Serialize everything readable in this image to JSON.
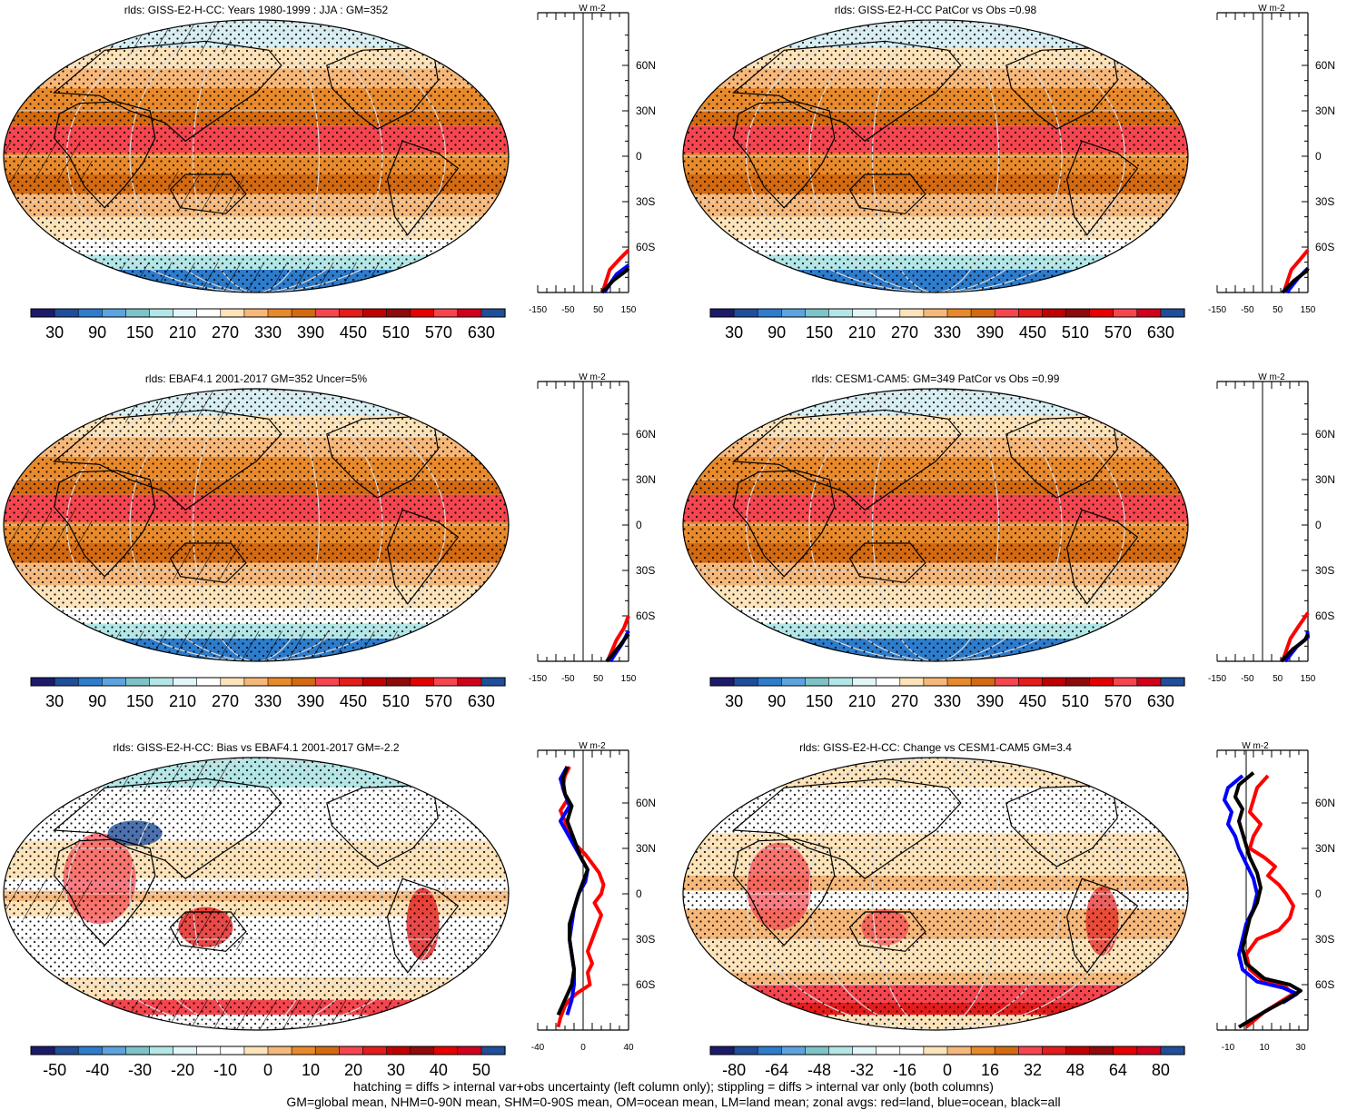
{
  "footer": {
    "line1": "hatching = diffs > internal var+obs uncertainty (left column only); stippling = diffs > internal var only (both columns)",
    "line2": "GM=global mean, NHM=0-90N mean, SHM=0-90S mean, OM=ocean mean, LM=land mean; zonal avgs: red=land, blue=ocean, black=all"
  },
  "colors": {
    "abs_scale": [
      "#1c1a6a",
      "#1f4e9a",
      "#2e7ccc",
      "#5ca4e0",
      "#7ec3c8",
      "#b3e6e6",
      "#e2f5f7",
      "#ffffff",
      "#fde3b9",
      "#f6b87a",
      "#e88a2c",
      "#d36a12",
      "#f5454f",
      "#e41c1c",
      "#c00000",
      "#8f0a0a",
      "#e60000",
      "#f5454f",
      "#d1001c",
      "#1f4e9a"
    ],
    "diff_scale": [
      "#1c1a6a",
      "#1f4e9a",
      "#2e7ccc",
      "#5ca4e0",
      "#7ec3c8",
      "#b3e6e6",
      "#e2f5f7",
      "#ffffff",
      "#ffffff",
      "#fde3b9",
      "#f6b87a",
      "#e88a2c",
      "#d36a12",
      "#f5454f",
      "#e41c1c",
      "#c00000",
      "#8f0a0a",
      "#e60000",
      "#d1001c",
      "#1f4e9a"
    ],
    "land_line": "#ff0000",
    "ocean_line": "#0000ff",
    "all_line": "#000000"
  },
  "lat_labels": [
    "60N",
    "30N",
    "0",
    "30S",
    "60S"
  ],
  "panels": [
    {
      "title": "rlds: GISS-E2-H-CC: Years 1980-1999 : JJA : GM=352",
      "kind": "abs",
      "hatched": true,
      "colorbar_labels": [
        "30",
        "90",
        "150",
        "210",
        "270",
        "330",
        "390",
        "450",
        "510",
        "570",
        "630"
      ],
      "zonal": {
        "unit": "W m-2",
        "ticks": [
          "-150",
          "-50",
          "50",
          "150"
        ]
      }
    },
    {
      "title": "rlds: GISS-E2-H-CC PatCor vs Obs =0.98",
      "kind": "abs",
      "hatched": false,
      "colorbar_labels": [
        "30",
        "90",
        "150",
        "210",
        "270",
        "330",
        "390",
        "450",
        "510",
        "570",
        "630"
      ],
      "zonal": {
        "unit": "W m-2",
        "ticks": [
          "-150",
          "-50",
          "50",
          "150"
        ]
      }
    },
    {
      "title": "rlds: EBAF4.1 2001-2017 GM=352 Uncer=5%",
      "kind": "abs",
      "hatched": true,
      "colorbar_labels": [
        "30",
        "90",
        "150",
        "210",
        "270",
        "330",
        "390",
        "450",
        "510",
        "570",
        "630"
      ],
      "zonal": {
        "unit": "W m-2",
        "ticks": [
          "-150",
          "-50",
          "50",
          "150"
        ]
      }
    },
    {
      "title": "rlds: CESM1-CAM5: GM=349 PatCor vs Obs =0.99",
      "kind": "abs",
      "hatched": false,
      "colorbar_labels": [
        "30",
        "90",
        "150",
        "210",
        "270",
        "330",
        "390",
        "450",
        "510",
        "570",
        "630"
      ],
      "zonal": {
        "unit": "W m-2",
        "ticks": [
          "-150",
          "-50",
          "50",
          "150"
        ]
      }
    },
    {
      "title": "rlds: GISS-E2-H-CC: Bias vs EBAF4.1 2001-2017 GM=-2.2",
      "kind": "diff",
      "hatched": true,
      "colorbar_labels": [
        "-50",
        "-40",
        "-30",
        "-20",
        "-10",
        "0",
        "10",
        "20",
        "30",
        "40",
        "50"
      ],
      "zonal": {
        "unit": "W m-2",
        "ticks": [
          "-40",
          "0",
          "40"
        ]
      }
    },
    {
      "title": "rlds: GISS-E2-H-CC: Change vs CESM1-CAM5 GM=3.4",
      "kind": "change",
      "hatched": false,
      "colorbar_labels": [
        "-80",
        "-64",
        "-48",
        "-32",
        "-16",
        "0",
        "16",
        "32",
        "48",
        "64",
        "80"
      ],
      "zonal": {
        "unit": "W m-2",
        "ticks": [
          "-10",
          "10",
          "30"
        ]
      }
    }
  ],
  "chart_data": [
    {
      "type": "line",
      "title": "rlds: GISS-E2-H-CC: Years 1980-1999 : JJA : GM=352",
      "xlabel": "W m-2",
      "ylabel": "",
      "xlim": [
        -150,
        150
      ],
      "ylim": [
        -90,
        90
      ],
      "y_ticks": [
        "60N",
        "30N",
        "0",
        "30S",
        "60S"
      ],
      "series": [
        {
          "name": "red=land",
          "x": [
            64,
            88,
            120,
            150
          ],
          "y": [
            -90,
            -75,
            -68,
            -62
          ]
        },
        {
          "name": "blue=ocean",
          "x": [
            70,
            110,
            150
          ],
          "y": [
            -90,
            -78,
            -72
          ]
        },
        {
          "name": "black=all",
          "x": [
            62,
            100,
            140,
            150
          ],
          "y": [
            -90,
            -82,
            -76,
            -74
          ]
        }
      ]
    },
    {
      "type": "line",
      "title": "rlds: GISS-E2-H-CC PatCor vs Obs =0.98",
      "xlabel": "W m-2",
      "ylabel": "",
      "xlim": [
        -150,
        150
      ],
      "ylim": [
        -90,
        90
      ],
      "y_ticks": [
        "60N",
        "30N",
        "0",
        "30S",
        "60S"
      ],
      "series": [
        {
          "name": "red=land",
          "x": [
            70,
            95,
            125,
            150
          ],
          "y": [
            -90,
            -75,
            -68,
            -62
          ]
        },
        {
          "name": "blue=ocean",
          "x": [
            80,
            120,
            150
          ],
          "y": [
            -90,
            -80,
            -74
          ]
        },
        {
          "name": "black=all",
          "x": [
            66,
            105,
            145,
            150
          ],
          "y": [
            -90,
            -82,
            -76,
            -74
          ]
        }
      ]
    },
    {
      "type": "line",
      "title": "rlds: EBAF4.1 2001-2017 GM=352 Uncer=5%",
      "xlabel": "W m-2",
      "ylabel": "",
      "xlim": [
        -150,
        150
      ],
      "ylim": [
        -90,
        90
      ],
      "y_ticks": [
        "60N",
        "30N",
        "0",
        "30S",
        "60S"
      ],
      "series": [
        {
          "name": "red=land",
          "x": [
            80,
            110,
            135,
            150
          ],
          "y": [
            -90,
            -76,
            -68,
            -60
          ]
        },
        {
          "name": "blue=ocean",
          "x": [
            90,
            130,
            150
          ],
          "y": [
            -90,
            -78,
            -70
          ]
        },
        {
          "name": "black=all",
          "x": [
            78,
            120,
            150
          ],
          "y": [
            -90,
            -80,
            -72
          ]
        }
      ]
    },
    {
      "type": "line",
      "title": "rlds: CESM1-CAM5: GM=349 PatCor vs Obs =0.99",
      "xlabel": "W m-2",
      "ylabel": "",
      "xlim": [
        -150,
        150
      ],
      "ylim": [
        -90,
        90
      ],
      "y_ticks": [
        "60N",
        "30N",
        "0",
        "30S",
        "60S"
      ],
      "series": [
        {
          "name": "red=land",
          "x": [
            66,
            92,
            122,
            150
          ],
          "y": [
            -90,
            -75,
            -66,
            -58
          ]
        },
        {
          "name": "blue=ocean",
          "x": [
            75,
            115,
            150,
            148
          ],
          "y": [
            -90,
            -80,
            -74,
            -70
          ]
        },
        {
          "name": "black=all",
          "x": [
            62,
            100,
            140,
            150
          ],
          "y": [
            -90,
            -82,
            -76,
            -72
          ]
        }
      ]
    },
    {
      "type": "line",
      "title": "rlds: GISS-E2-H-CC: Bias vs EBAF4.1 2001-2017 GM=-2.2",
      "xlabel": "W m-2",
      "ylabel": "",
      "xlim": [
        -40,
        40
      ],
      "ylim": [
        -90,
        90
      ],
      "y_ticks": [
        "60N",
        "30N",
        "0",
        "30S",
        "60S"
      ],
      "series": [
        {
          "name": "red=land",
          "x": [
            -12,
            -16,
            -18,
            -14,
            -20,
            -16,
            -12,
            -6,
            2,
            8,
            14,
            18,
            16,
            10,
            16,
            12,
            8,
            4,
            8,
            4,
            6,
            -6,
            -12,
            -16,
            -18,
            -20,
            -22
          ],
          "y": [
            84,
            78,
            70,
            62,
            55,
            48,
            40,
            32,
            26,
            20,
            14,
            6,
            0,
            -6,
            -14,
            -22,
            -30,
            -38,
            -46,
            -52,
            -60,
            -66,
            -70,
            -74,
            -78,
            -82,
            -88
          ]
        },
        {
          "name": "blue=ocean",
          "x": [
            -14,
            -20,
            -16,
            -12,
            -20,
            -14,
            -8,
            -2,
            4,
            2,
            -4,
            -8,
            -10,
            -12,
            -10,
            -8,
            -8,
            -10,
            -14
          ],
          "y": [
            84,
            76,
            66,
            58,
            48,
            40,
            32,
            24,
            16,
            8,
            0,
            -10,
            -20,
            -30,
            -40,
            -50,
            -60,
            -70,
            -80
          ]
        },
        {
          "name": "black=all",
          "x": [
            -14,
            -18,
            -16,
            -10,
            -14,
            -10,
            -6,
            -2,
            4,
            0,
            -4,
            -8,
            -12,
            -12,
            -10,
            -8,
            -10,
            -16,
            -22
          ],
          "y": [
            84,
            76,
            66,
            58,
            48,
            40,
            32,
            24,
            16,
            8,
            0,
            -10,
            -20,
            -30,
            -40,
            -50,
            -60,
            -70,
            -80
          ]
        }
      ]
    },
    {
      "type": "line",
      "title": "rlds: GISS-E2-H-CC: Change vs CESM1-CAM5 GM=3.4",
      "xlabel": "W m-2",
      "ylabel": "",
      "xlim": [
        -16,
        34
      ],
      "ylim": [
        -90,
        90
      ],
      "y_ticks": [
        "60N",
        "30N",
        "0",
        "30S",
        "60S"
      ],
      "series": [
        {
          "name": "red=land",
          "x": [
            12,
            6,
            4,
            2,
            8,
            4,
            2,
            10,
            16,
            12,
            18,
            22,
            26,
            24,
            18,
            6,
            0,
            2,
            10,
            22,
            26,
            18,
            10,
            0
          ],
          "y": [
            78,
            70,
            62,
            54,
            46,
            38,
            30,
            24,
            18,
            12,
            6,
            0,
            -8,
            -16,
            -24,
            -30,
            -40,
            -50,
            -58,
            -62,
            -66,
            -72,
            -78,
            -88
          ]
        },
        {
          "name": "blue=ocean",
          "x": [
            -2,
            -10,
            -12,
            -8,
            -10,
            -6,
            -4,
            0,
            4,
            6,
            4,
            0,
            -2,
            -4,
            -2,
            6,
            20,
            28,
            20
          ],
          "y": [
            78,
            70,
            62,
            54,
            46,
            38,
            30,
            20,
            10,
            0,
            -10,
            -20,
            -30,
            -40,
            -50,
            -58,
            -62,
            -66,
            -72
          ]
        },
        {
          "name": "black=all",
          "x": [
            4,
            -4,
            -6,
            -2,
            -4,
            -2,
            0,
            2,
            6,
            8,
            6,
            2,
            0,
            -2,
            0,
            10,
            24,
            30,
            22,
            10,
            -4
          ],
          "y": [
            80,
            72,
            64,
            56,
            48,
            40,
            32,
            24,
            14,
            4,
            -6,
            -16,
            -26,
            -36,
            -46,
            -56,
            -60,
            -64,
            -70,
            -78,
            -88
          ]
        }
      ]
    }
  ]
}
